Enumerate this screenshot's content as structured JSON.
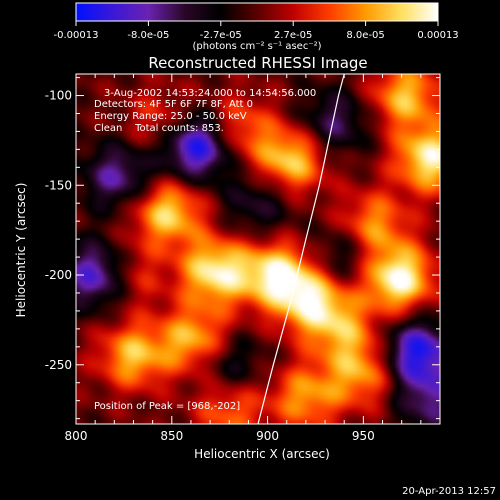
{
  "colorbar": {
    "ticks": [
      "-0.00013",
      "-8.0e-05",
      "-2.7e-05",
      "2.7e-05",
      "8.0e-05",
      "0.00013"
    ],
    "unit_label": "(photons cm⁻² s⁻¹ asec⁻²)",
    "range": [
      -0.00013,
      0.00013
    ],
    "colors": [
      "#0010ff",
      "#3a18d8",
      "#6a22b0",
      "#2a0628",
      "#000000",
      "#5a0000",
      "#c00000",
      "#ff3c00",
      "#ff9a00",
      "#ffe060",
      "#ffffff"
    ]
  },
  "chart_data": {
    "type": "heatmap",
    "title": "Reconstructed RHESSI Image",
    "xlabel": "Heliocentric X (arcsec)",
    "ylabel": "Heliocentric Y (arcsec)",
    "xlim": [
      800,
      990
    ],
    "ylim": [
      -283,
      -88
    ],
    "xticks": [
      "800",
      "850",
      "900",
      "950"
    ],
    "yticks": [
      "-100",
      "-150",
      "-200",
      "-250"
    ],
    "annotations": {
      "time": "3-Aug-2002 14:53:24.000 to 14:54:56.000",
      "detectors": "Detectors: 4F 5F 6F 7F 8F, Att 0",
      "energy": "Energy Range: 25.0 - 50.0 keV",
      "clean": "Clean    Total counts: 853.",
      "peak": "Position of Peak = [968,-202]"
    },
    "limb_curve": {
      "x": [
        895,
        903,
        912,
        920,
        927,
        933,
        937,
        940
      ],
      "y": [
        -283,
        -250,
        -215,
        -180,
        -150,
        -120,
        -100,
        -88
      ]
    },
    "sources": [
      {
        "x": 848,
        "y": -165,
        "v": 0.8
      },
      {
        "x": 873,
        "y": -198,
        "v": 0.9
      },
      {
        "x": 862,
        "y": -236,
        "v": 0.7
      },
      {
        "x": 912,
        "y": -136,
        "v": 0.8
      },
      {
        "x": 905,
        "y": -200,
        "v": 0.9
      },
      {
        "x": 924,
        "y": -215,
        "v": 0.8
      },
      {
        "x": 968,
        "y": -202,
        "v": 1.0
      },
      {
        "x": 985,
        "y": -135,
        "v": 0.9
      },
      {
        "x": 972,
        "y": -100,
        "v": 0.7
      },
      {
        "x": 955,
        "y": -172,
        "v": 0.6
      },
      {
        "x": 830,
        "y": -245,
        "v": 0.7
      },
      {
        "x": 825,
        "y": -200,
        "v": 0.6
      },
      {
        "x": 950,
        "y": -255,
        "v": 0.6
      },
      {
        "x": 920,
        "y": -268,
        "v": 0.6
      },
      {
        "x": 885,
        "y": -118,
        "v": 0.5
      },
      {
        "x": 845,
        "y": -115,
        "v": 0.4
      },
      {
        "x": 880,
        "y": -275,
        "v": 0.5
      },
      {
        "x": 940,
        "y": -232,
        "v": 0.5
      },
      {
        "x": 813,
        "y": -200,
        "v": -1.0
      },
      {
        "x": 863,
        "y": -128,
        "v": -1.0
      },
      {
        "x": 978,
        "y": -243,
        "v": -0.9
      },
      {
        "x": 822,
        "y": -145,
        "v": -0.6
      },
      {
        "x": 935,
        "y": -115,
        "v": -0.5
      },
      {
        "x": 895,
        "y": -160,
        "v": -0.4
      },
      {
        "x": 940,
        "y": -190,
        "v": -0.4
      },
      {
        "x": 880,
        "y": -250,
        "v": -0.4
      },
      {
        "x": 985,
        "y": -270,
        "v": -0.5
      }
    ]
  },
  "footer": {
    "timestamp": "20-Apr-2013 12:57"
  }
}
